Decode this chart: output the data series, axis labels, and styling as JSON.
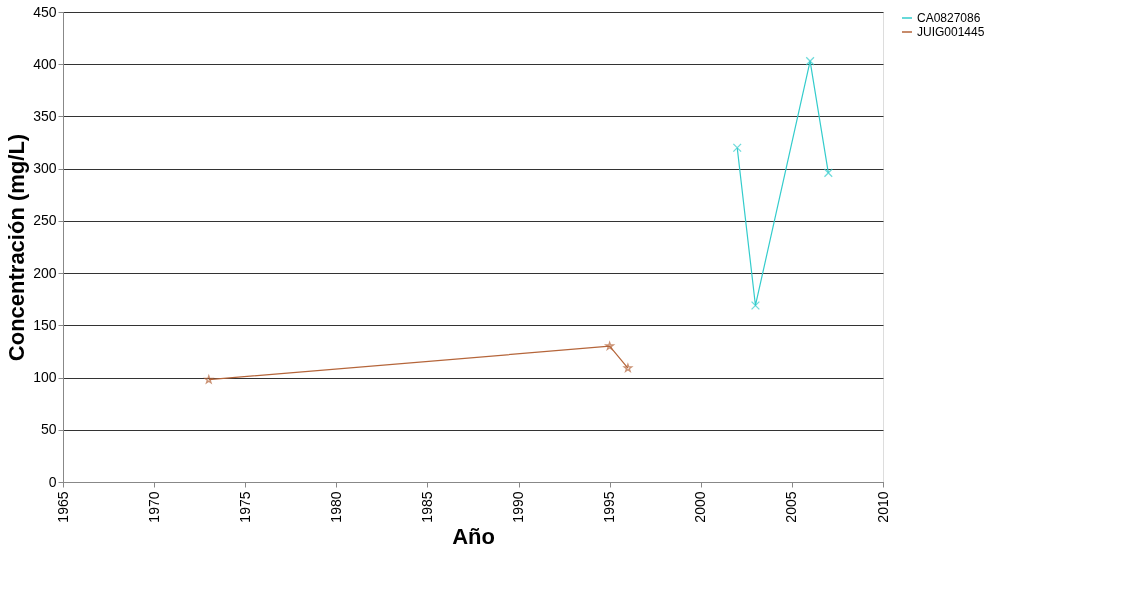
{
  "chart_data": {
    "type": "line",
    "xlabel": "Año",
    "ylabel": "Concentración (mg/L)",
    "xlim": [
      1965,
      2010
    ],
    "xticks": [
      1965,
      1970,
      1975,
      1980,
      1985,
      1990,
      1995,
      2000,
      2005,
      2010
    ],
    "ylim": [
      0,
      450
    ],
    "yticks": [
      0,
      50,
      100,
      150,
      200,
      250,
      300,
      350,
      400,
      450
    ],
    "grid": "y",
    "legend": "right",
    "series": [
      {
        "name": "CA0827086",
        "color": "#33cccc",
        "marker": "cross",
        "x": [
          2002,
          2003,
          2006,
          2007
        ],
        "values": [
          320,
          169,
          403,
          296
        ]
      },
      {
        "name": "JUIG001445",
        "color": "#b5653a",
        "marker": "star",
        "x": [
          1973,
          1995,
          1996
        ],
        "values": [
          98,
          130,
          109
        ]
      }
    ]
  }
}
